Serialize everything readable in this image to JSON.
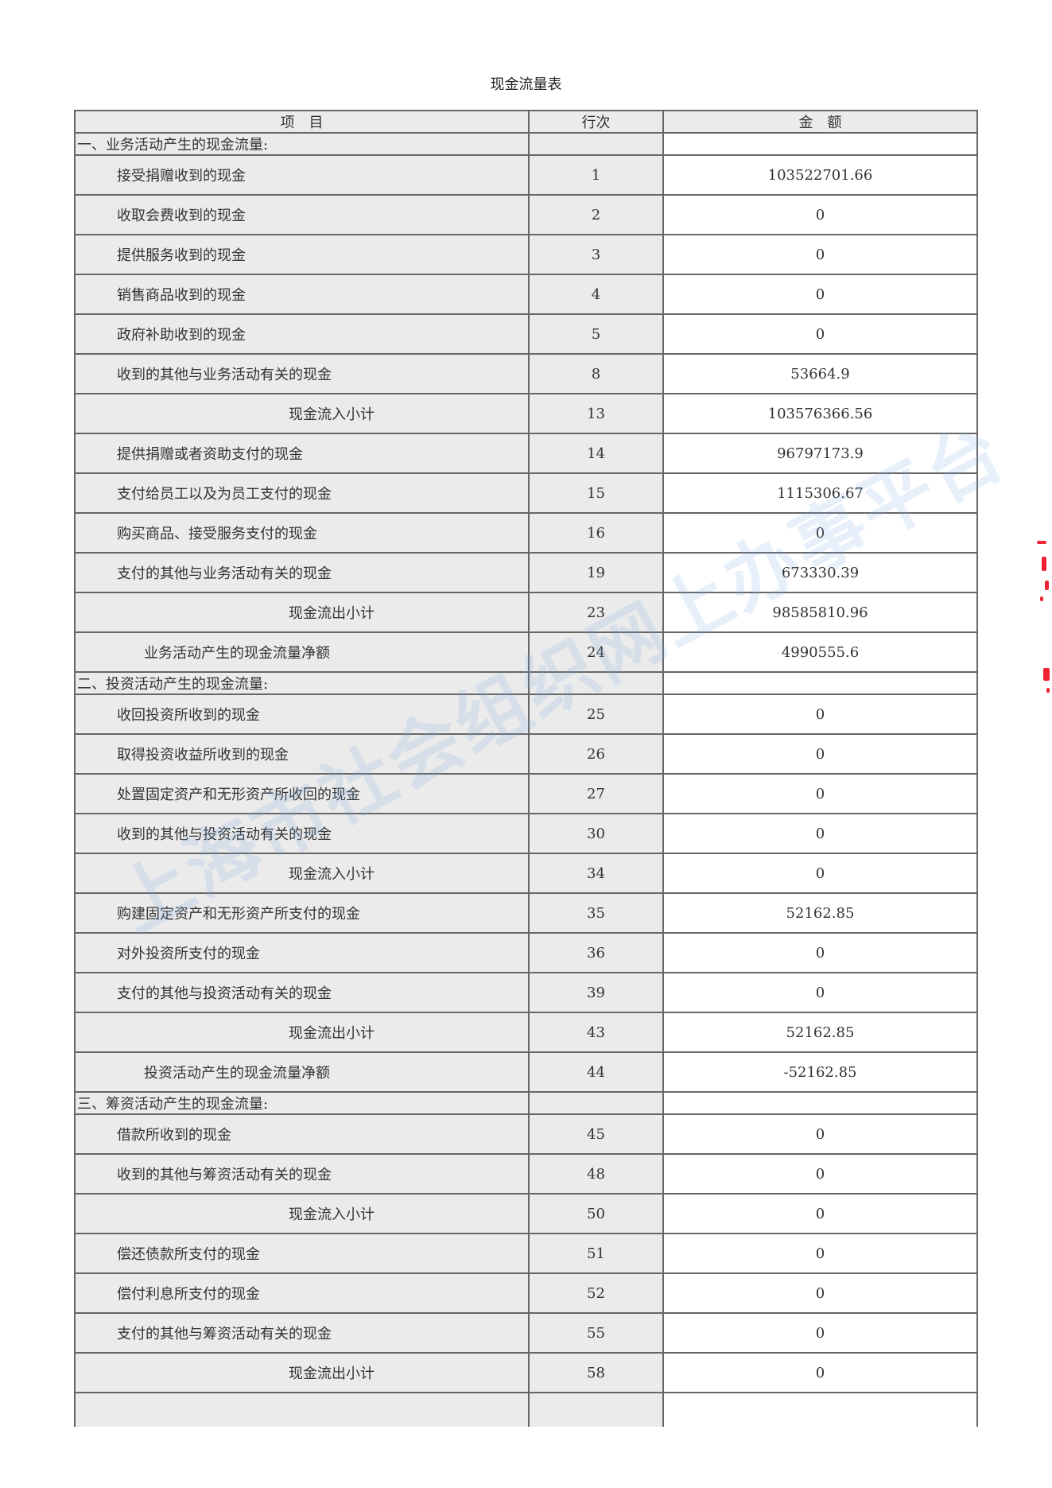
{
  "title": "现金流量表",
  "header": {
    "item": "项　目",
    "line_no": "行次",
    "amount": "金　额"
  },
  "rows": [
    {
      "type": "section",
      "label": "一、业务活动产生的现金流量:",
      "line": "",
      "amount": ""
    },
    {
      "type": "item",
      "label": "接受捐赠收到的现金",
      "line": "1",
      "amount": "103522701.66"
    },
    {
      "type": "item",
      "label": "收取会费收到的现金",
      "line": "2",
      "amount": "0"
    },
    {
      "type": "item",
      "label": "提供服务收到的现金",
      "line": "3",
      "amount": "0"
    },
    {
      "type": "item",
      "label": "销售商品收到的现金",
      "line": "4",
      "amount": "0"
    },
    {
      "type": "item",
      "label": "政府补助收到的现金",
      "line": "5",
      "amount": "0"
    },
    {
      "type": "item",
      "label": "收到的其他与业务活动有关的现金",
      "line": "8",
      "amount": "53664.9"
    },
    {
      "type": "subtotal",
      "label": "现金流入小计",
      "line": "13",
      "amount": "103576366.56"
    },
    {
      "type": "item",
      "label": "提供捐赠或者资助支付的现金",
      "line": "14",
      "amount": "96797173.9"
    },
    {
      "type": "item",
      "label": "支付给员工以及为员工支付的现金",
      "line": "15",
      "amount": "1115306.67"
    },
    {
      "type": "item",
      "label": "购买商品、接受服务支付的现金",
      "line": "16",
      "amount": "0"
    },
    {
      "type": "item",
      "label": "支付的其他与业务活动有关的现金",
      "line": "19",
      "amount": "673330.39"
    },
    {
      "type": "subtotal",
      "label": "现金流出小计",
      "line": "23",
      "amount": "98585810.96"
    },
    {
      "type": "net",
      "label": "业务活动产生的现金流量净额",
      "line": "24",
      "amount": "4990555.6"
    },
    {
      "type": "section",
      "label": "二、投资活动产生的现金流量:",
      "line": "",
      "amount": ""
    },
    {
      "type": "item",
      "label": "收回投资所收到的现金",
      "line": "25",
      "amount": "0"
    },
    {
      "type": "item",
      "label": "取得投资收益所收到的现金",
      "line": "26",
      "amount": "0"
    },
    {
      "type": "item",
      "label": "处置固定资产和无形资产所收回的现金",
      "line": "27",
      "amount": "0"
    },
    {
      "type": "item",
      "label": "收到的其他与投资活动有关的现金",
      "line": "30",
      "amount": "0"
    },
    {
      "type": "subtotal",
      "label": "现金流入小计",
      "line": "34",
      "amount": "0"
    },
    {
      "type": "item",
      "label": "购建固定资产和无形资产所支付的现金",
      "line": "35",
      "amount": "52162.85"
    },
    {
      "type": "item",
      "label": "对外投资所支付的现金",
      "line": "36",
      "amount": "0"
    },
    {
      "type": "item",
      "label": "支付的其他与投资活动有关的现金",
      "line": "39",
      "amount": "0"
    },
    {
      "type": "subtotal",
      "label": "现金流出小计",
      "line": "43",
      "amount": "52162.85"
    },
    {
      "type": "net",
      "label": "投资活动产生的现金流量净额",
      "line": "44",
      "amount": "-52162.85"
    },
    {
      "type": "section",
      "label": "三、筹资活动产生的现金流量:",
      "line": "",
      "amount": ""
    },
    {
      "type": "item",
      "label": "借款所收到的现金",
      "line": "45",
      "amount": "0"
    },
    {
      "type": "item",
      "label": "收到的其他与筹资活动有关的现金",
      "line": "48",
      "amount": "0"
    },
    {
      "type": "subtotal",
      "label": "现金流入小计",
      "line": "50",
      "amount": "0"
    },
    {
      "type": "item",
      "label": "偿还债款所支付的现金",
      "line": "51",
      "amount": "0"
    },
    {
      "type": "item",
      "label": "偿付利息所支付的现金",
      "line": "52",
      "amount": "0"
    },
    {
      "type": "item",
      "label": "支付的其他与筹资活动有关的现金",
      "line": "55",
      "amount": "0"
    },
    {
      "type": "subtotal",
      "label": "现金流出小计",
      "line": "58",
      "amount": "0"
    },
    {
      "type": "item",
      "label": "",
      "line": "",
      "amount": ""
    }
  ],
  "watermark": "上海市社会组织网上办事平台",
  "colors": {
    "label_bg": "#ebebeb",
    "border": "#666666",
    "watermark": "#78aae1",
    "stamp": "#ee2233"
  }
}
